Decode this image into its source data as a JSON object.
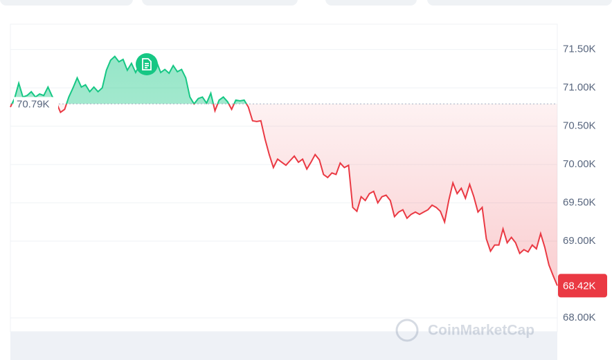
{
  "chart_data": {
    "type": "line",
    "values": [
      70750,
      70860,
      71060,
      70880,
      70900,
      70950,
      70880,
      70920,
      70900,
      71010,
      70890,
      70810,
      70680,
      70720,
      70880,
      71000,
      71130,
      71010,
      71040,
      70950,
      71010,
      70950,
      71000,
      71230,
      71360,
      71410,
      71340,
      71370,
      71230,
      71320,
      71200,
      71300,
      71240,
      71320,
      71230,
      71340,
      71200,
      71240,
      71190,
      71290,
      71210,
      71240,
      71130,
      70880,
      70790,
      70860,
      70880,
      70800,
      70930,
      70700,
      70840,
      70880,
      70820,
      70720,
      70840,
      70830,
      70840,
      70750,
      70570,
      70560,
      70570,
      70330,
      70130,
      69960,
      70070,
      70030,
      69990,
      70050,
      70110,
      70030,
      70070,
      69940,
      70030,
      70130,
      70060,
      69870,
      69830,
      69890,
      69870,
      70020,
      69960,
      69990,
      69440,
      69390,
      69580,
      69530,
      69620,
      69650,
      69500,
      69580,
      69600,
      69530,
      69320,
      69380,
      69410,
      69300,
      69350,
      69380,
      69350,
      69380,
      69410,
      69470,
      69440,
      69390,
      69250,
      69530,
      69760,
      69620,
      69690,
      69560,
      69740,
      69580,
      69380,
      69440,
      69030,
      68870,
      68950,
      68950,
      69160,
      68980,
      69050,
      68980,
      68840,
      68890,
      68860,
      68950,
      68900,
      69100,
      68920,
      68690,
      68550,
      68420
    ],
    "up_color": "#16c784",
    "down_color": "#ea3943",
    "ylim": [
      67820,
      71830
    ],
    "yticks": [
      {
        "value": 68000,
        "label": "68.00K"
      },
      {
        "value": 69000,
        "label": "69.00K"
      },
      {
        "value": 69500,
        "label": "69.50K"
      },
      {
        "value": 70000,
        "label": "70.00K"
      },
      {
        "value": 70500,
        "label": "70.50K"
      },
      {
        "value": 71000,
        "label": "71.00K"
      },
      {
        "value": 71500,
        "label": "71.50K"
      }
    ],
    "baseline": {
      "value": 70790,
      "label": "70.79K"
    },
    "current": {
      "value": 68420,
      "label": "68.42K"
    },
    "watermark": "CoinMarketCap",
    "grid": true
  }
}
